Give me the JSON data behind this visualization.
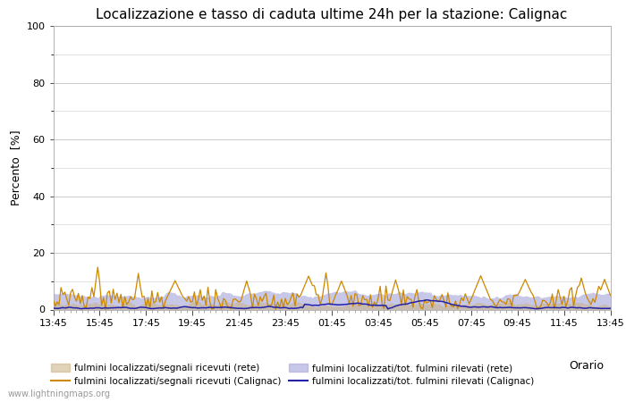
{
  "title": "Localizzazione e tasso di caduta ultime 24h per la stazione: Calignac",
  "ylabel": "Percento  [%]",
  "xlabel": "Orario",
  "watermark": "www.lightningmaps.org",
  "ylim": [
    0,
    100
  ],
  "yticks": [
    0,
    20,
    40,
    60,
    80,
    100
  ],
  "xtick_labels": [
    "13:45",
    "15:45",
    "17:45",
    "19:45",
    "21:45",
    "23:45",
    "01:45",
    "03:45",
    "05:45",
    "07:45",
    "09:45",
    "11:45",
    "13:45"
  ],
  "color_fill_rete": "#c8b080",
  "color_fill_rete_alpha": 0.55,
  "color_fill_calignac": "#aaaadd",
  "color_fill_calignac_alpha": 0.65,
  "color_line_rete": "#cc8800",
  "color_line_calignac": "#2222aa",
  "legend_labels": [
    "fulmini localizzati/segnali ricevuti (rete)",
    "fulmini localizzati/segnali ricevuti (Calignac)",
    "fulmini localizzati/tot. fulmini rilevati (rete)",
    "fulmini localizzati/tot. fulmini rilevati (Calignac)"
  ],
  "background_color": "#ffffff",
  "grid_color": "#cccccc",
  "spine_color": "#aaaaaa",
  "n_points": 289,
  "tick_fontsize": 8,
  "label_fontsize": 9,
  "title_fontsize": 11
}
